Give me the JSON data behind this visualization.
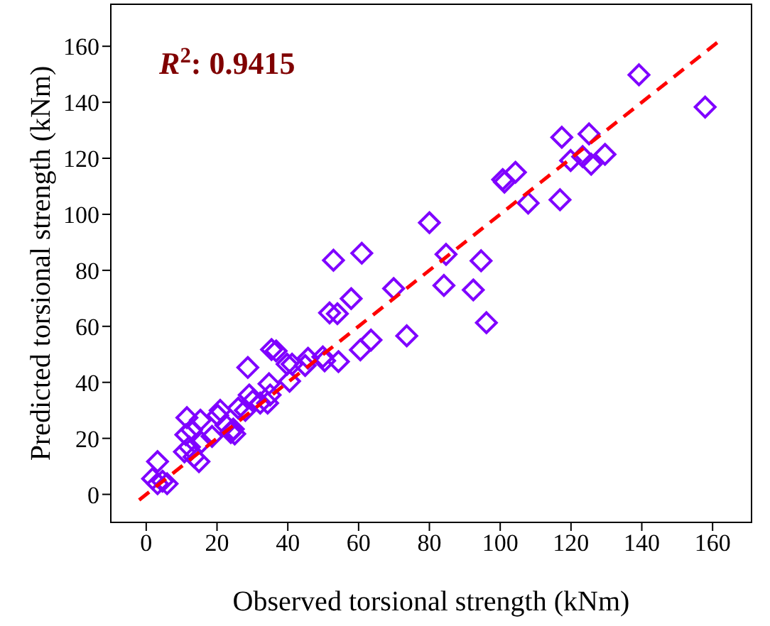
{
  "chart_data": {
    "type": "scatter",
    "xlabel": "Observed torsional strength (kNm)",
    "ylabel": "Predicted torsional strength (kNm)",
    "annotations": [
      "R$^{2}$: 0.9415"
    ],
    "xlim": [
      -10,
      171
    ],
    "ylim": [
      -10,
      175
    ],
    "xticks": [
      0,
      20,
      40,
      60,
      80,
      100,
      120,
      140,
      160
    ],
    "yticks": [
      0,
      20,
      40,
      60,
      80,
      100,
      120,
      140,
      160
    ],
    "series": [
      {
        "type": "scatter",
        "marker": "diamond",
        "color": "#7f00ff",
        "x": [
          3.2,
          1.8,
          3.2,
          5.9,
          4.6,
          11.5,
          11.2,
          12.8,
          10.8,
          12.2,
          13.5,
          14.9,
          15.3,
          15.6,
          18.6,
          20.2,
          20.9,
          22.5,
          23.9,
          25,
          24.6,
          26,
          28.7,
          28,
          29.1,
          30.1,
          32.2,
          34.3,
          34.7,
          35,
          35.4,
          36.7,
          39.8,
          40.5,
          41.2,
          44.9,
          45.7,
          49.9,
          50.4,
          51.8,
          52.9,
          54,
          54.3,
          57.9,
          60.5,
          60.9,
          63.5,
          69.9,
          73.6,
          80,
          84.1,
          84.7,
          92.4,
          94.6,
          96.1,
          100.7,
          101.2,
          104.3,
          107.9,
          116.9,
          117.4,
          119.9,
          123.3,
          125.1,
          125.7,
          129.6,
          139.2,
          157.9
        ],
        "values": [
          11.7,
          5.6,
          3.8,
          3.8,
          4.7,
          27.4,
          21.3,
          23,
          15.2,
          16.9,
          13.4,
          11.7,
          26.5,
          18.6,
          20.7,
          28.2,
          30,
          24.7,
          22.1,
          21.6,
          23.3,
          30.8,
          45.3,
          30,
          35.5,
          33.4,
          32.6,
          32.6,
          39.5,
          35.5,
          51.7,
          51.2,
          46.5,
          40.4,
          46.5,
          46,
          48.6,
          49.1,
          47.7,
          64.8,
          83.6,
          64.5,
          47.4,
          69.9,
          51.6,
          86.1,
          55.1,
          73.5,
          56.6,
          97,
          74.6,
          85.7,
          73,
          83.4,
          61.3,
          112.4,
          111.5,
          115,
          104,
          105.2,
          127.5,
          119.2,
          120.6,
          128.7,
          117.9,
          121.4,
          149.8,
          138.3
        ]
      },
      {
        "type": "line",
        "marker": "none",
        "line_style": "dashed",
        "color": "#ff0000",
        "x": [
          -2,
          162
        ],
        "values": [
          -2,
          162
        ]
      }
    ]
  }
}
